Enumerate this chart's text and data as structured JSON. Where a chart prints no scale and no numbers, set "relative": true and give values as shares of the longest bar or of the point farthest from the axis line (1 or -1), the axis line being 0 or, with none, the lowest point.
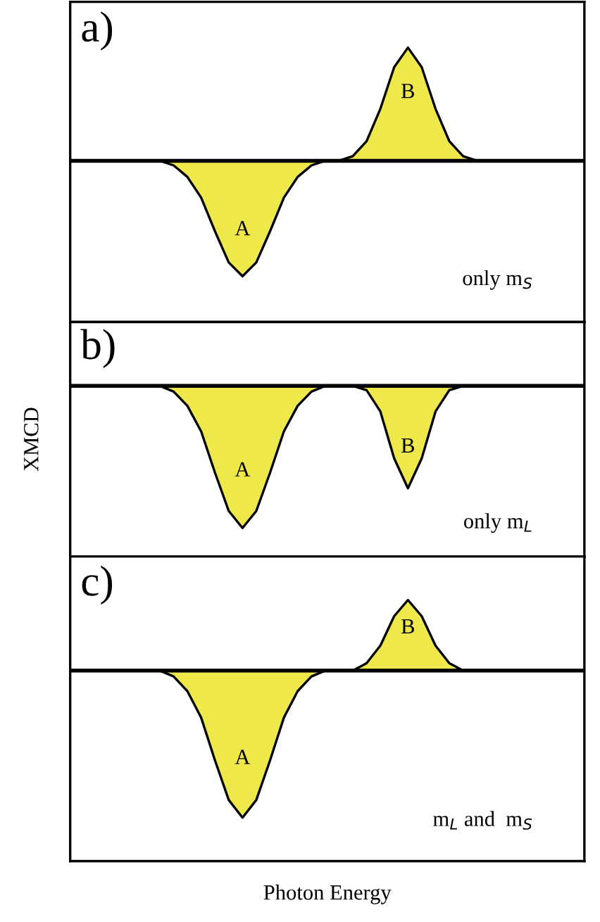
{
  "chart_data": [
    {
      "type": "area",
      "title": "a)",
      "relative": true,
      "categories": [
        null,
        null,
        null,
        null,
        null,
        null,
        null,
        null,
        null,
        null,
        null,
        null,
        null,
        null,
        null,
        null,
        null,
        null,
        null,
        null,
        null,
        null,
        null,
        null,
        null,
        null,
        null,
        null,
        null,
        null,
        null,
        null,
        null,
        null,
        null,
        null,
        null
      ],
      "series": [
        {
          "name": "A",
          "color": "#eee84a",
          "values": [
            null,
            null,
            null,
            null,
            null,
            null,
            0,
            -0.04,
            -0.14,
            -0.32,
            -0.61,
            -0.88,
            -1,
            -0.88,
            -0.61,
            -0.32,
            -0.14,
            -0.04,
            0,
            null,
            null,
            null,
            null,
            null,
            null,
            null,
            null,
            null,
            null,
            null,
            null,
            null,
            null,
            null,
            null,
            null,
            null
          ]
        },
        {
          "name": "B",
          "color": "#eee84a",
          "values": [
            null,
            null,
            null,
            null,
            null,
            null,
            null,
            null,
            null,
            null,
            null,
            null,
            null,
            null,
            null,
            null,
            null,
            null,
            null,
            0,
            0.04,
            0.17,
            0.45,
            0.81,
            0.98,
            0.81,
            0.45,
            0.17,
            0.04,
            0,
            null,
            null,
            null,
            null,
            null,
            null,
            null
          ]
        }
      ],
      "annotations": [
        "only m$_{S}$"
      ]
    },
    {
      "type": "area",
      "title": "b)",
      "relative": true,
      "ylabel": "XMCD",
      "categories": [
        null,
        null,
        null,
        null,
        null,
        null,
        null,
        null,
        null,
        null,
        null,
        null,
        null,
        null,
        null,
        null,
        null,
        null,
        null,
        null,
        null,
        null,
        null,
        null,
        null,
        null,
        null,
        null,
        null,
        null,
        null,
        null,
        null,
        null,
        null,
        null,
        null
      ],
      "series": [
        {
          "name": "A",
          "color": "#eee84a",
          "values": [
            null,
            null,
            null,
            null,
            null,
            null,
            0,
            -0.04,
            -0.14,
            -0.32,
            -0.61,
            -0.88,
            -1,
            -0.88,
            -0.61,
            -0.32,
            -0.14,
            -0.04,
            0,
            null,
            null,
            null,
            null,
            null,
            null,
            null,
            null,
            null,
            null,
            null,
            null,
            null,
            null,
            null,
            null,
            null,
            null
          ]
        },
        {
          "name": "B",
          "color": "#eee84a",
          "values": [
            null,
            null,
            null,
            null,
            null,
            null,
            null,
            null,
            null,
            null,
            null,
            null,
            null,
            null,
            null,
            null,
            null,
            null,
            null,
            null,
            0,
            -0.03,
            -0.18,
            -0.51,
            -0.72,
            -0.51,
            -0.18,
            -0.03,
            0,
            null,
            null,
            null,
            null,
            null,
            null,
            null,
            null
          ]
        }
      ],
      "annotations": [
        "only m$_{L}$"
      ]
    },
    {
      "type": "area",
      "title": "c)",
      "relative": true,
      "xlabel": "Photon Energy",
      "categories": [
        null,
        null,
        null,
        null,
        null,
        null,
        null,
        null,
        null,
        null,
        null,
        null,
        null,
        null,
        null,
        null,
        null,
        null,
        null,
        null,
        null,
        null,
        null,
        null,
        null,
        null,
        null,
        null,
        null,
        null,
        null,
        null,
        null,
        null,
        null,
        null,
        null
      ],
      "series": [
        {
          "name": "A",
          "color": "#eee84a",
          "values": [
            null,
            null,
            null,
            null,
            null,
            null,
            0,
            -0.04,
            -0.14,
            -0.32,
            -0.61,
            -0.88,
            -1,
            -0.88,
            -0.61,
            -0.32,
            -0.14,
            -0.04,
            0,
            null,
            null,
            null,
            null,
            null,
            null,
            null,
            null,
            null,
            null,
            null,
            null,
            null,
            null,
            null,
            null,
            null,
            null
          ]
        },
        {
          "name": "B",
          "color": "#eee84a",
          "values": [
            null,
            null,
            null,
            null,
            null,
            null,
            null,
            null,
            null,
            null,
            null,
            null,
            null,
            null,
            null,
            null,
            null,
            null,
            null,
            null,
            0,
            0.05,
            0.17,
            0.37,
            0.48,
            0.37,
            0.17,
            0.05,
            0,
            null,
            null,
            null,
            null,
            null,
            null,
            null,
            null
          ]
        }
      ],
      "annotations": [
        "m$_{L}$ and  m$_{S}$"
      ]
    }
  ]
}
